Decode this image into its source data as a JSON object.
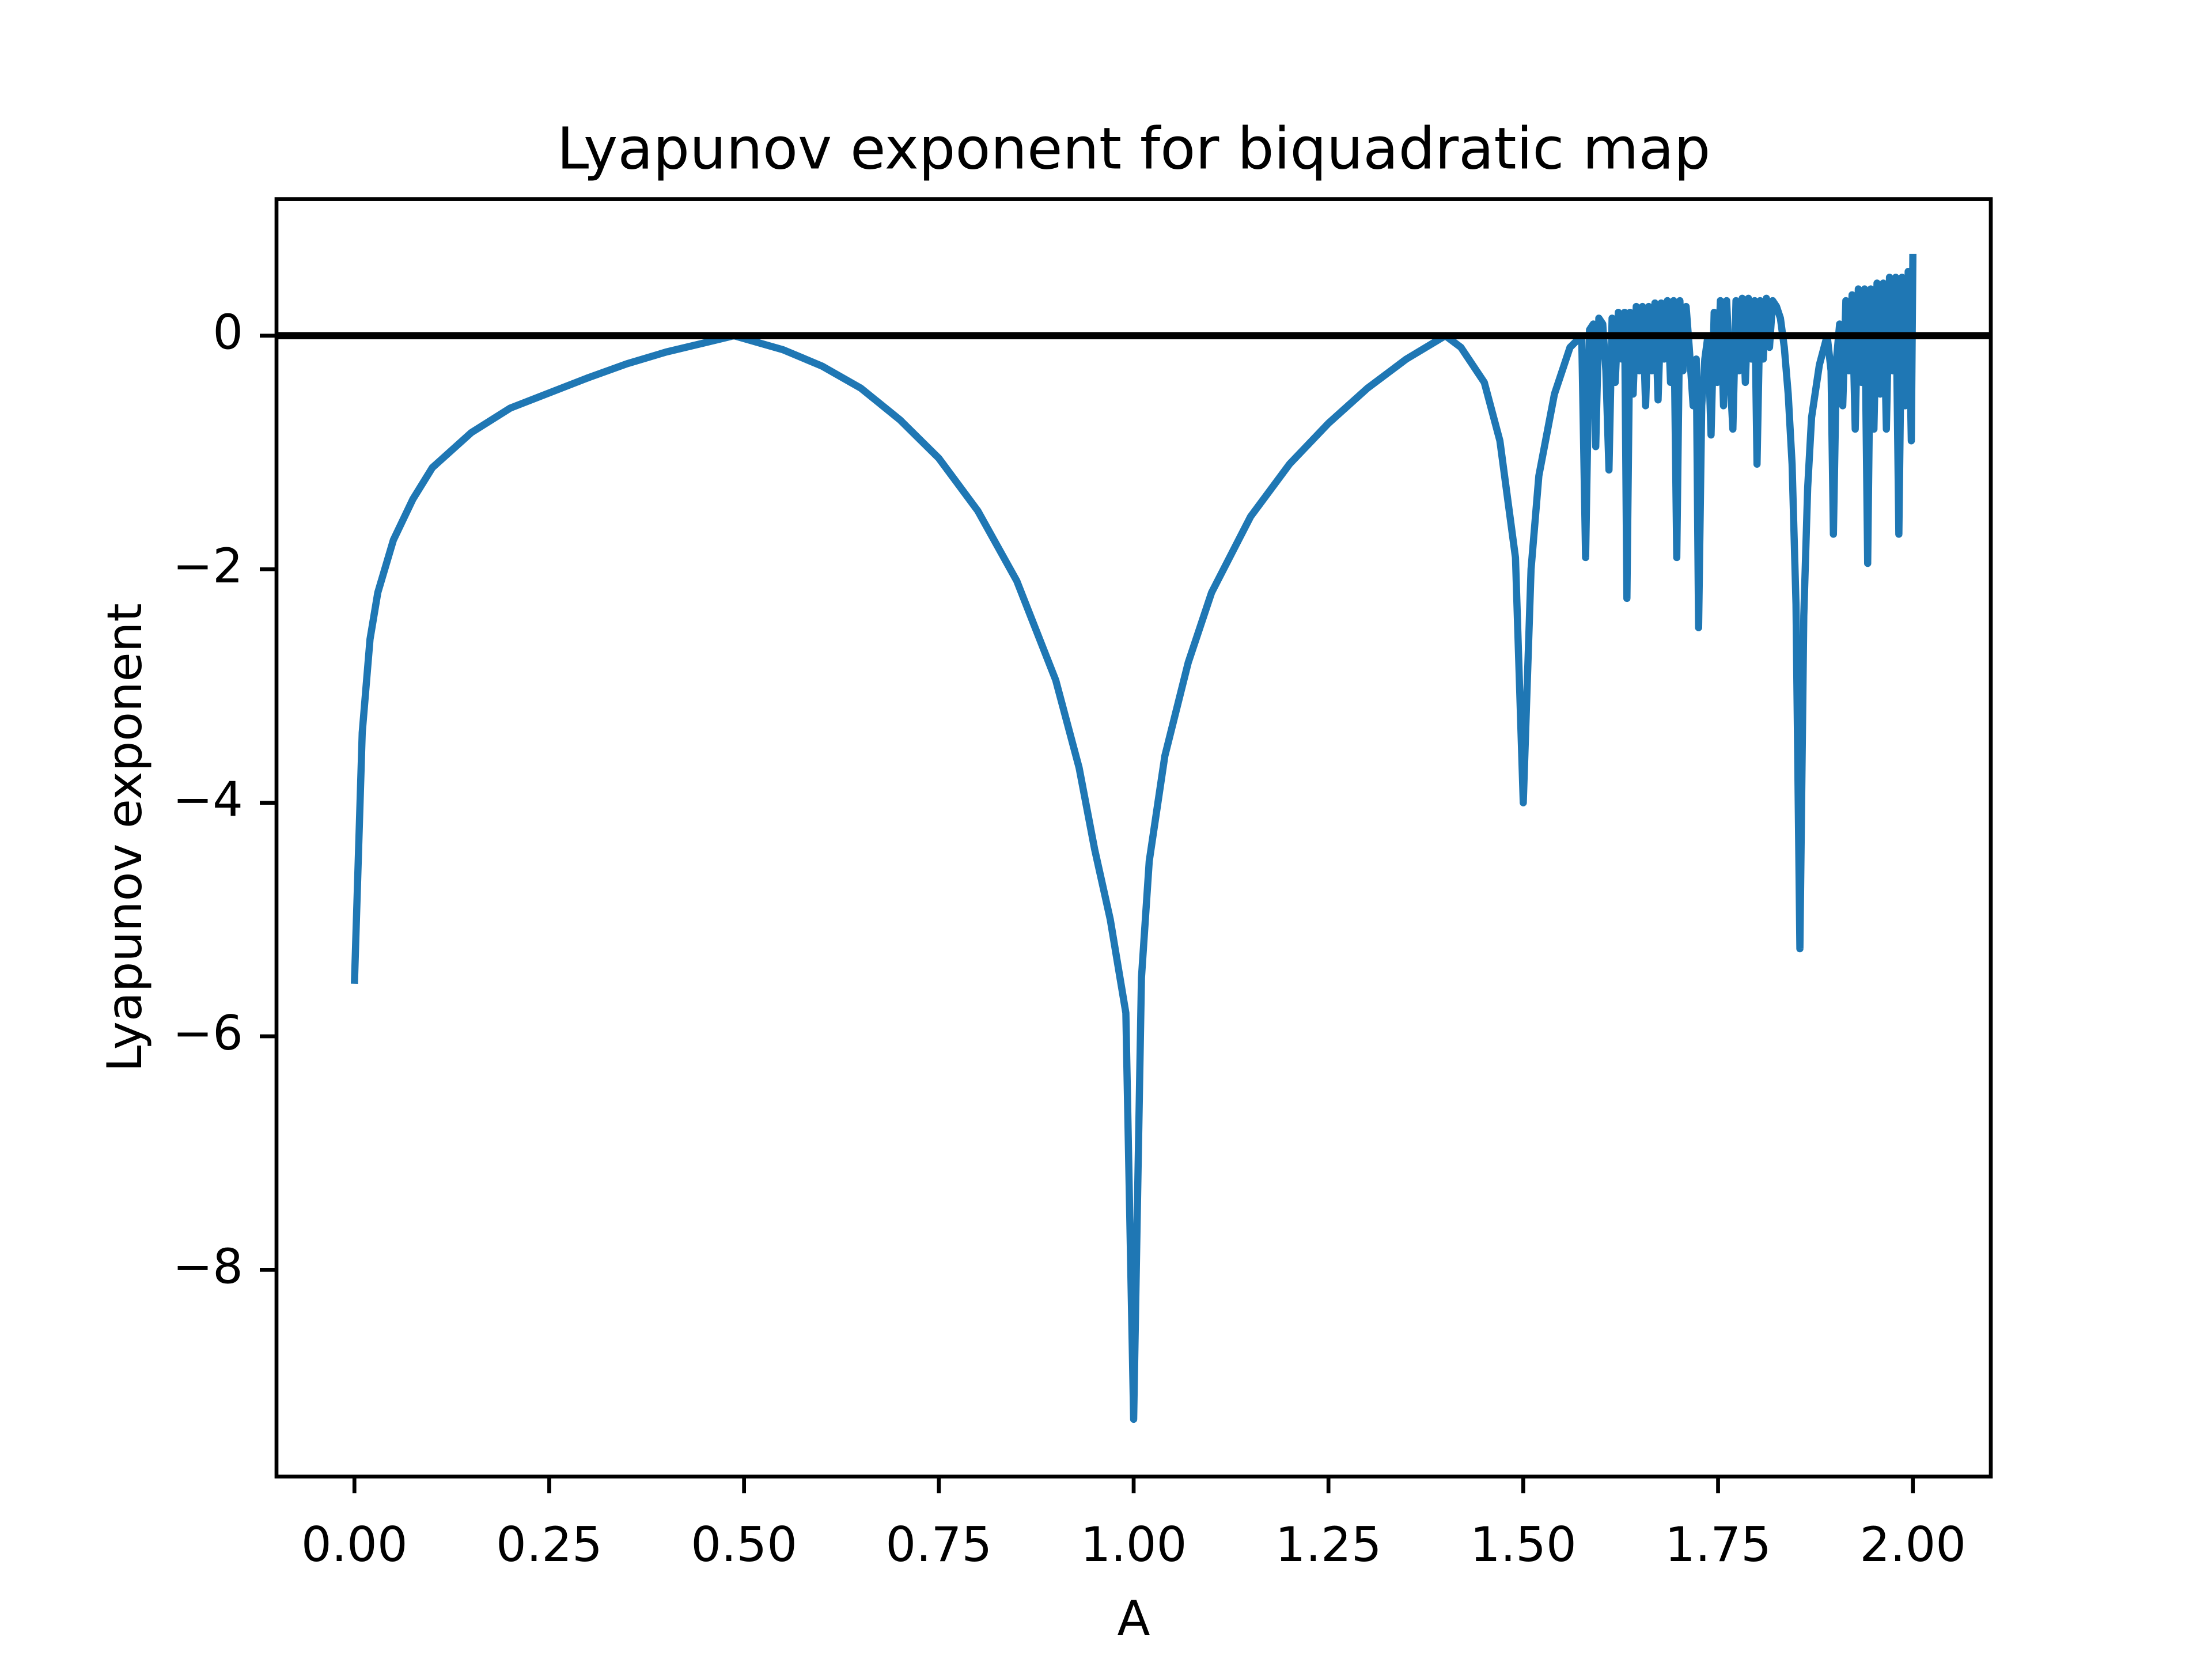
{
  "chart_data": {
    "type": "line",
    "title": "Lyapunov exponent for biquadratic map",
    "xlabel": "A",
    "ylabel": "Lyapunov exponent",
    "xlim": [
      -0.1,
      2.1
    ],
    "ylim": [
      -9.77,
      1.17
    ],
    "xticks": [
      {
        "value": 0,
        "label": "0.00"
      },
      {
        "value": 0.25,
        "label": "0.25"
      },
      {
        "value": 0.5,
        "label": "0.50"
      },
      {
        "value": 0.75,
        "label": "0.75"
      },
      {
        "value": 1,
        "label": "1.00"
      },
      {
        "value": 1.25,
        "label": "1.25"
      },
      {
        "value": 1.5,
        "label": "1.50"
      },
      {
        "value": 1.75,
        "label": "1.75"
      },
      {
        "value": 2,
        "label": "2.00"
      }
    ],
    "yticks": [
      {
        "value": -8,
        "label": "−8"
      },
      {
        "value": -6,
        "label": "−6"
      },
      {
        "value": -4,
        "label": "−4"
      },
      {
        "value": -2,
        "label": "−2"
      },
      0
    ],
    "hlines": [
      {
        "y": 0,
        "color": "#000000"
      }
    ],
    "x": [
      0,
      0.01,
      0.02,
      0.03,
      0.05,
      0.075,
      0.1,
      0.15,
      0.2,
      0.25,
      0.3,
      0.35,
      0.4,
      0.45,
      0.487,
      0.55,
      0.6,
      0.65,
      0.7,
      0.75,
      0.8,
      0.85,
      0.9,
      0.93,
      0.95,
      0.97,
      0.99,
      1.0,
      1.01,
      1.02,
      1.04,
      1.07,
      1.1,
      1.15,
      1.2,
      1.25,
      1.3,
      1.35,
      1.4,
      1.42,
      1.45,
      1.47,
      1.49,
      1.5,
      1.51,
      1.52,
      1.54,
      1.56,
      1.575,
      1.58,
      1.585,
      1.59,
      1.593,
      1.597,
      1.602,
      1.606,
      1.61,
      1.614,
      1.618,
      1.622,
      1.626,
      1.63,
      1.633,
      1.637,
      1.641,
      1.645,
      1.649,
      1.653,
      1.657,
      1.661,
      1.665,
      1.669,
      1.673,
      1.677,
      1.681,
      1.685,
      1.689,
      1.693,
      1.697,
      1.701,
      1.705,
      1.709,
      1.713,
      1.718,
      1.722,
      1.725,
      1.729,
      1.733,
      1.737,
      1.741,
      1.745,
      1.749,
      1.753,
      1.757,
      1.761,
      1.765,
      1.769,
      1.773,
      1.777,
      1.781,
      1.785,
      1.789,
      1.793,
      1.797,
      1.8,
      1.804,
      1.808,
      1.812,
      1.816,
      1.82,
      1.825,
      1.83,
      1.835,
      1.84,
      1.845,
      1.85,
      1.855,
      1.86,
      1.865,
      1.87,
      1.88,
      1.89,
      1.895,
      1.898,
      1.902,
      1.906,
      1.91,
      1.914,
      1.918,
      1.922,
      1.926,
      1.93,
      1.934,
      1.938,
      1.942,
      1.946,
      1.95,
      1.954,
      1.958,
      1.962,
      1.966,
      1.97,
      1.974,
      1.978,
      1.982,
      1.986,
      1.99,
      1.994,
      1.998,
      2.0
    ],
    "series": [
      {
        "color": "#1f77b4",
        "values": [
          -5.55,
          -3.4,
          -2.6,
          -2.2,
          -1.75,
          -1.4,
          -1.13,
          -0.83,
          -0.62,
          -0.49,
          -0.36,
          -0.24,
          -0.14,
          -0.06,
          0,
          -0.12,
          -0.26,
          -0.45,
          -0.72,
          -1.05,
          -1.5,
          -2.1,
          -2.95,
          -3.7,
          -4.4,
          -5.0,
          -5.8,
          -9.28,
          -5.5,
          -4.5,
          -3.6,
          -2.8,
          -2.2,
          -1.55,
          -1.1,
          -0.75,
          -0.45,
          -0.2,
          0,
          -0.1,
          -0.4,
          -0.9,
          -1.9,
          -4.0,
          -2.0,
          -1.2,
          -0.5,
          -0.1,
          0.0,
          -1.9,
          0.05,
          0.1,
          -0.95,
          0.15,
          0.1,
          -0.3,
          -1.15,
          0.15,
          -0.4,
          0.2,
          -0.2,
          0.2,
          -2.25,
          0.2,
          -0.5,
          0.25,
          -0.3,
          0.25,
          -0.6,
          0.25,
          -0.3,
          0.28,
          -0.55,
          0.28,
          -0.2,
          0.3,
          -0.4,
          0.3,
          -1.9,
          0.3,
          -0.3,
          0.25,
          -0.1,
          -0.6,
          -0.2,
          -2.5,
          -0.6,
          -0.2,
          0.0,
          -0.85,
          0.2,
          -0.4,
          0.3,
          -0.6,
          0.3,
          -0.3,
          -0.8,
          0.3,
          -0.3,
          0.32,
          -0.4,
          0.32,
          -0.2,
          0.3,
          -1.1,
          0.3,
          -0.2,
          0.32,
          -0.1,
          0.3,
          0.25,
          0.15,
          -0.1,
          -0.5,
          -1.1,
          -2.3,
          -5.25,
          -2.4,
          -1.3,
          -0.7,
          -0.25,
          0.0,
          -0.3,
          -1.7,
          -0.2,
          0.1,
          -0.6,
          0.3,
          -0.3,
          0.35,
          -0.8,
          0.4,
          -0.4,
          0.4,
          -1.95,
          0.4,
          -0.8,
          0.45,
          -0.5,
          0.45,
          -0.8,
          0.5,
          -0.3,
          0.5,
          -1.7,
          0.5,
          -0.6,
          0.55,
          -0.9,
          0.7
        ]
      }
    ]
  }
}
